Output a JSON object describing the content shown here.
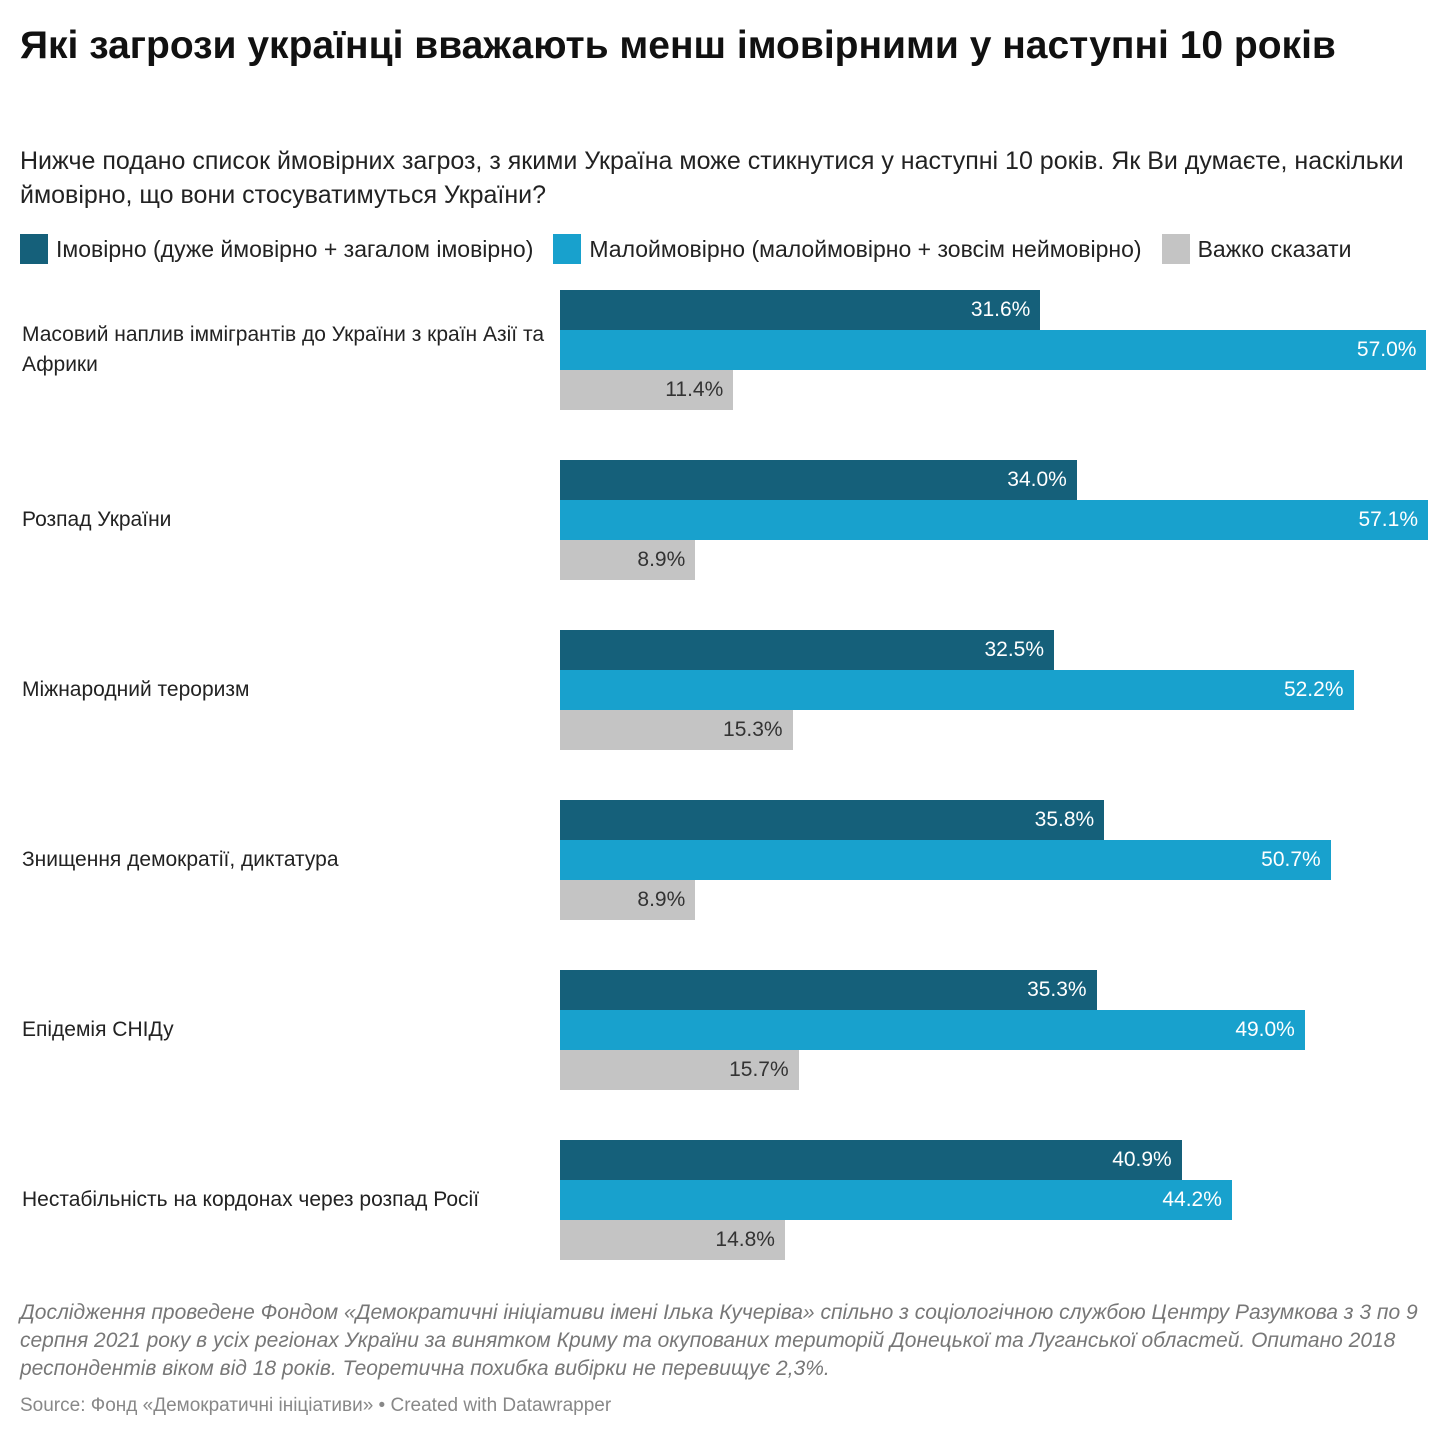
{
  "title": "Які загрози українці вважають менш імовірними у наступні 10 років",
  "subtitle": "Нижче подано список ймовірних загроз, з якими Україна може стикнутися у наступні 10 років. Як Ви думаєте, наскільки ймовірно, що вони стосуватимуться України?",
  "notes": "Дослідження проведене Фондом «Демократичні ініціативи імені Ілька Кучеріва» спільно з соціологічною службою Центру Разумкова з 3 по 9 серпня 2021 року в усіх регіонах України за винятком Криму та окупованих територій Донецької та Луганської областей. Опитано 2018 респондентів віком від 18 років. Теоретична похибка вибірки не перевищує 2,3%.",
  "source": "Source: Фонд «Демократичні ініціативи» • Created with Datawrapper",
  "chart_data": {
    "type": "bar",
    "orientation": "horizontal",
    "title": "Які загрози українці вважають менш імовірними у наступні 10 років",
    "xlabel": "",
    "ylabel": "",
    "xlim": [
      0,
      57.1
    ],
    "grid": false,
    "legend_position": "top-left",
    "categories": [
      "Масовий наплив іммігрантів до України з країн Азії та Африки",
      "Розпад України",
      "Міжнародний тероризм",
      "Знищення демократії, диктатура",
      "Епідемія СНІДу",
      "Нестабільність на кордонах через розпад Росії"
    ],
    "series": [
      {
        "name": "Імовірно (дуже ймовірно + загалом імовірно)",
        "color": "#15607a",
        "text_color": "#ffffff",
        "values": [
          31.6,
          34.0,
          32.5,
          35.8,
          35.3,
          40.9
        ]
      },
      {
        "name": "Малоймовірно (малоймовірно + зовсім неймовірно)",
        "color": "#18a1cd",
        "text_color": "#ffffff",
        "values": [
          57.0,
          57.1,
          52.2,
          50.7,
          49.0,
          44.2
        ]
      },
      {
        "name": "Важко сказати",
        "color": "#c4c4c4",
        "text_color": "#333333",
        "values": [
          11.4,
          8.9,
          15.3,
          8.9,
          15.7,
          14.8
        ]
      }
    ]
  }
}
